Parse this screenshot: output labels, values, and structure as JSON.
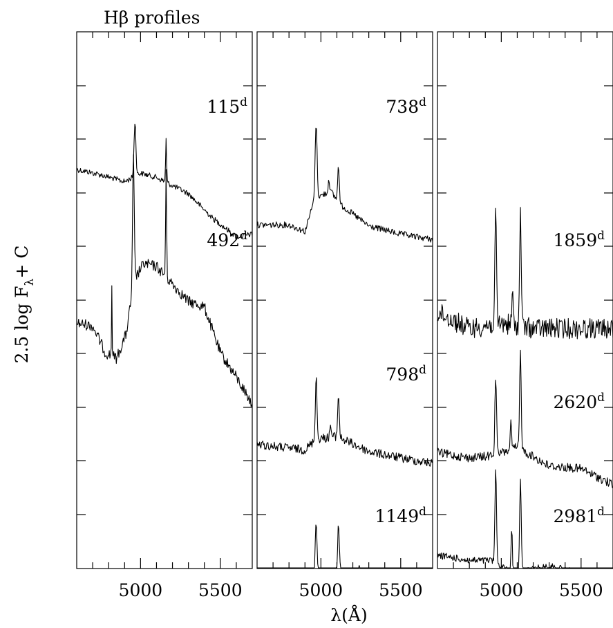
{
  "chart_data": {
    "type": "line",
    "title": "Hβ   profiles",
    "xlabel": "λ(Å)",
    "ylabel": "2.5 log F",
    "ylabel_sub": "λ",
    "ylabel_tail": "+ C",
    "xlim": [
      4600,
      5700
    ],
    "x_tick_labels": [
      "5000",
      "5500"
    ],
    "panels": [
      {
        "name": "left",
        "spectra": [
          {
            "label": "115",
            "sup": "d",
            "noise": 0.8,
            "color": "#000000",
            "continuum": [
              [
                4600,
                2.55
              ],
              [
                4750,
                2.65
              ],
              [
                4900,
                2.78
              ],
              [
                5000,
                2.62
              ],
              [
                5100,
                2.7
              ],
              [
                5300,
                3.0
              ],
              [
                5450,
                3.45
              ],
              [
                5600,
                3.8
              ],
              [
                5650,
                3.78
              ],
              [
                5700,
                3.75
              ]
            ],
            "peaks": [
              [
                4965,
                6,
                1.0
              ],
              [
                5160,
                3,
                0.8
              ]
            ]
          },
          {
            "label": "492",
            "sup": "d",
            "noise": 1.6,
            "color": "#000000",
            "continuum": [
              [
                4600,
                5.4
              ],
              [
                4700,
                5.45
              ],
              [
                4780,
                5.95
              ],
              [
                4850,
                6.05
              ],
              [
                4910,
                5.6
              ],
              [
                4960,
                4.6
              ],
              [
                5020,
                4.3
              ],
              [
                5100,
                4.35
              ],
              [
                5300,
                5.0
              ],
              [
                5400,
                5.1
              ],
              [
                5500,
                5.95
              ],
              [
                5600,
                6.4
              ],
              [
                5700,
                6.9
              ]
            ],
            "peaks": [
              [
                4955,
                5,
                2.4
              ],
              [
                5160,
                3,
                2.0
              ],
              [
                4820,
                2,
                1.3
              ]
            ]
          }
        ]
      },
      {
        "name": "middle",
        "spectra": [
          {
            "label": "738",
            "sup": "d",
            "noise": 0.9,
            "color": "#000000",
            "continuum": [
              [
                4600,
                3.58
              ],
              [
                4800,
                3.58
              ],
              [
                4900,
                3.7
              ],
              [
                4960,
                3.1
              ],
              [
                5060,
                2.95
              ],
              [
                5120,
                3.2
              ],
              [
                5300,
                3.6
              ],
              [
                5500,
                3.75
              ],
              [
                5700,
                3.85
              ]
            ],
            "peaks": [
              [
                4970,
                6,
                1.4
              ],
              [
                5110,
                5,
                0.7
              ],
              [
                5050,
                4,
                0.25
              ]
            ]
          },
          {
            "label": "798",
            "sup": "d",
            "noise": 1.3,
            "color": "#000000",
            "continuum": [
              [
                4600,
                7.65
              ],
              [
                4900,
                7.75
              ],
              [
                4970,
                7.55
              ],
              [
                5100,
                7.5
              ],
              [
                5300,
                7.78
              ],
              [
                5500,
                7.9
              ],
              [
                5700,
                8.0
              ]
            ],
            "peaks": [
              [
                4970,
                5,
                1.2
              ],
              [
                5110,
                5,
                0.8
              ],
              [
                5060,
                4,
                0.25
              ]
            ]
          },
          {
            "label": "1149",
            "sup": "d",
            "noise": 1.0,
            "color": "#000000",
            "continuum": [
              [
                4600,
                10.15
              ],
              [
                4800,
                10.1
              ],
              [
                4970,
                10.0
              ],
              [
                5100,
                10.0
              ],
              [
                5300,
                10.1
              ],
              [
                5500,
                10.15
              ],
              [
                5700,
                10.15
              ]
            ],
            "peaks": [
              [
                4970,
                5,
                0.95
              ],
              [
                5110,
                5,
                0.9
              ],
              [
                5240,
                4,
                0.2
              ]
            ]
          }
        ]
      },
      {
        "name": "right",
        "spectra": [
          {
            "label": "1859",
            "sup": "d",
            "noise": 3.0,
            "color": "#000000",
            "continuum": [
              [
                4600,
                5.2
              ],
              [
                4800,
                5.5
              ],
              [
                5000,
                5.4
              ],
              [
                5200,
                5.5
              ],
              [
                5400,
                5.5
              ],
              [
                5600,
                5.5
              ],
              [
                5700,
                5.5
              ]
            ],
            "peaks": [
              [
                4965,
                5,
                2.0
              ],
              [
                5120,
                5,
                2.1
              ],
              [
                5070,
                4,
                0.6
              ]
            ]
          },
          {
            "label": "2620",
            "sup": "d",
            "noise": 1.3,
            "color": "#000000",
            "continuum": [
              [
                4600,
                7.8
              ],
              [
                4800,
                7.9
              ],
              [
                4960,
                7.85
              ],
              [
                5100,
                7.7
              ],
              [
                5300,
                8.05
              ],
              [
                5500,
                8.1
              ],
              [
                5700,
                8.4
              ]
            ],
            "peaks": [
              [
                4965,
                5,
                1.5
              ],
              [
                5120,
                5,
                1.8
              ],
              [
                5060,
                4,
                0.5
              ]
            ]
          },
          {
            "label": "2981",
            "sup": "d",
            "noise": 1.0,
            "color": "#000000",
            "continuum": [
              [
                4600,
                9.7
              ],
              [
                4800,
                9.8
              ],
              [
                4940,
                9.8
              ],
              [
                5050,
                10.0
              ],
              [
                5150,
                10.0
              ],
              [
                5300,
                9.9
              ],
              [
                5500,
                10.05
              ],
              [
                5700,
                10.1
              ]
            ],
            "peaks": [
              [
                4965,
                5,
                1.7
              ],
              [
                5120,
                5,
                1.7
              ],
              [
                5065,
                4,
                0.8
              ]
            ]
          }
        ]
      }
    ]
  }
}
